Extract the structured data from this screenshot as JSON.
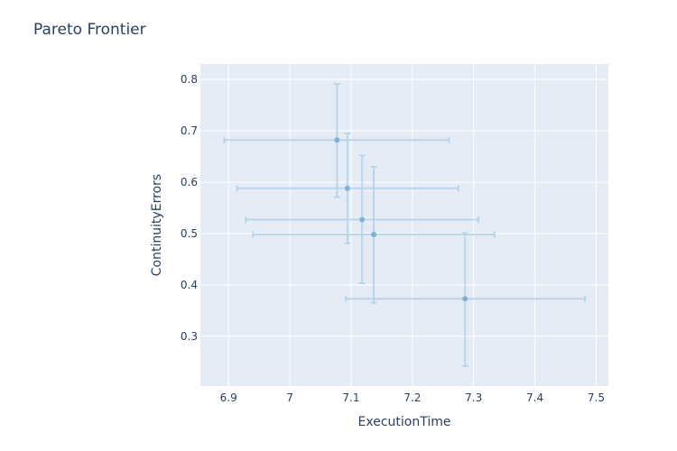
{
  "chart_data": {
    "type": "scatter",
    "title": "Pareto Frontier",
    "xlabel": "ExecutionTime",
    "ylabel": "ContinuityErrors",
    "xlim": [
      6.854,
      7.52
    ],
    "ylim": [
      0.203,
      0.83
    ],
    "x_ticks": [
      6.9,
      7,
      7.1,
      7.2,
      7.3,
      7.4,
      7.5
    ],
    "x_tick_labels": [
      "6.9",
      "7",
      "7.1",
      "7.2",
      "7.3",
      "7.4",
      "7.5"
    ],
    "y_ticks": [
      0.3,
      0.4,
      0.5,
      0.6,
      0.7,
      0.8
    ],
    "y_tick_labels": [
      "0.3",
      "0.4",
      "0.5",
      "0.6",
      "0.7",
      "0.8"
    ],
    "grid": true,
    "colors": {
      "plot_bg": "#e5ecf6",
      "grid": "#ffffff",
      "point": "#7fb2d3",
      "error_bar": "#b4d1e6",
      "text": "#2a3f5f"
    },
    "points": [
      {
        "x": 7.077,
        "y": 0.682,
        "x_err_minus": 0.184,
        "x_err_plus": 0.183,
        "y_err_minus": 0.111,
        "y_err_plus": 0.109
      },
      {
        "x": 7.094,
        "y": 0.588,
        "x_err_minus": 0.18,
        "x_err_plus": 0.181,
        "y_err_minus": 0.107,
        "y_err_plus": 0.107
      },
      {
        "x": 7.118,
        "y": 0.527,
        "x_err_minus": 0.19,
        "x_err_plus": 0.19,
        "y_err_minus": 0.124,
        "y_err_plus": 0.125
      },
      {
        "x": 7.137,
        "y": 0.498,
        "x_err_minus": 0.197,
        "x_err_plus": 0.197,
        "y_err_minus": 0.133,
        "y_err_plus": 0.132
      },
      {
        "x": 7.286,
        "y": 0.373,
        "x_err_minus": 0.195,
        "x_err_plus": 0.196,
        "y_err_minus": 0.131,
        "y_err_plus": 0.128
      }
    ]
  }
}
